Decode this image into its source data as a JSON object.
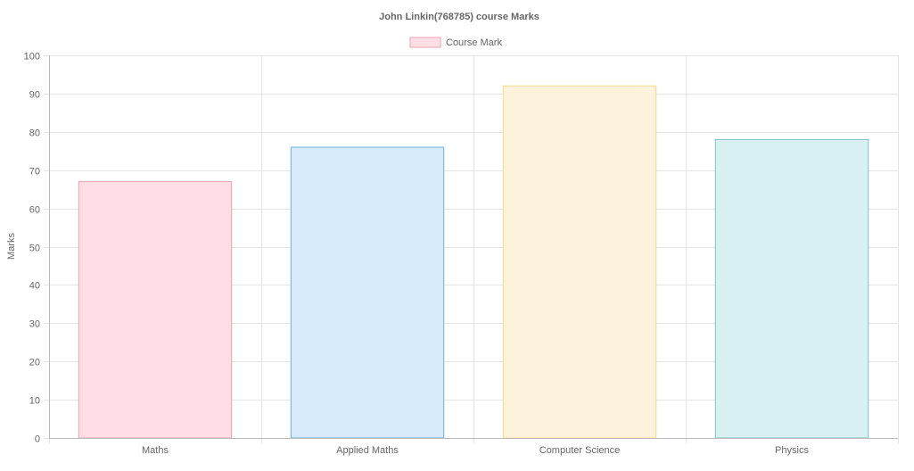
{
  "chart_data": {
    "type": "bar",
    "title": "John Linkin(768785) course Marks",
    "xlabel": "",
    "ylabel": "Marks",
    "categories": [
      "Maths",
      "Applied Maths",
      "Computer Science",
      "Physics"
    ],
    "series": [
      {
        "name": "Course Mark",
        "values": [
          67,
          76,
          92,
          78
        ]
      }
    ],
    "ylim": [
      0,
      100
    ],
    "y_ticks": [
      0,
      10,
      20,
      30,
      40,
      50,
      60,
      70,
      80,
      90,
      100
    ],
    "grid": true,
    "legend_position": "top",
    "colors": {
      "fills": [
        "#ffdfe5",
        "#d6eafa",
        "#fdf3dc",
        "#d8f0f1"
      ],
      "borders": [
        "#e8a0af",
        "#6ab1db",
        "#f3d98e",
        "#7cc3c6"
      ],
      "legend_fill": "#ffdfe5",
      "legend_border": "#e8a0af"
    }
  }
}
